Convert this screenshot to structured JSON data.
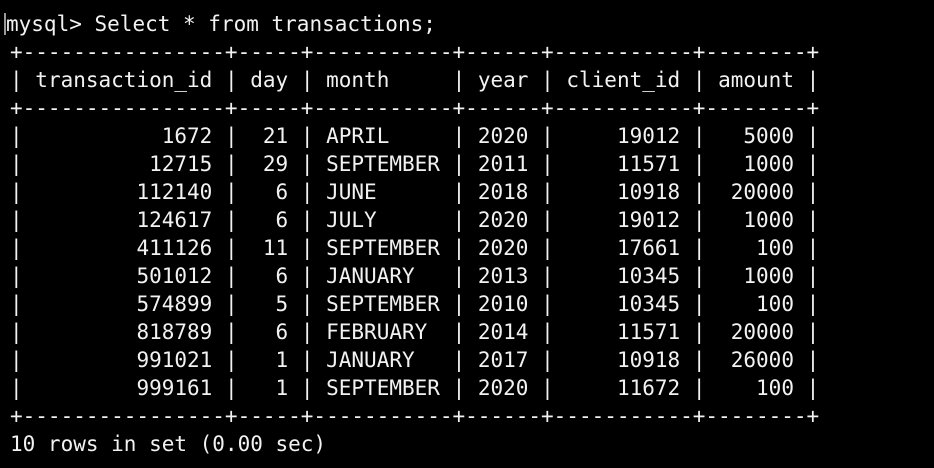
{
  "terminal": {
    "prompt": "mysql> ",
    "command": "Select * from transactions;",
    "footer": "10 rows in set (0.00 sec)"
  },
  "table": {
    "columns": [
      {
        "label": "transaction_id",
        "width": 14,
        "align": "right"
      },
      {
        "label": "day",
        "width": 3,
        "align": "right"
      },
      {
        "label": "month",
        "width": 9,
        "align": "left"
      },
      {
        "label": "year",
        "width": 4,
        "align": "right"
      },
      {
        "label": "client_id",
        "width": 9,
        "align": "right"
      },
      {
        "label": "amount",
        "width": 6,
        "align": "right"
      }
    ],
    "rows": [
      [
        "1672",
        "21",
        "APRIL",
        "2020",
        "19012",
        "5000"
      ],
      [
        "12715",
        "29",
        "SEPTEMBER",
        "2011",
        "11571",
        "1000"
      ],
      [
        "112140",
        "6",
        "JUNE",
        "2018",
        "10918",
        "20000"
      ],
      [
        "124617",
        "6",
        "JULY",
        "2020",
        "19012",
        "1000"
      ],
      [
        "411126",
        "11",
        "SEPTEMBER",
        "2020",
        "17661",
        "100"
      ],
      [
        "501012",
        "6",
        "JANUARY",
        "2013",
        "10345",
        "1000"
      ],
      [
        "574899",
        "5",
        "SEPTEMBER",
        "2010",
        "10345",
        "100"
      ],
      [
        "818789",
        "6",
        "FEBRUARY",
        "2014",
        "11571",
        "20000"
      ],
      [
        "991021",
        "1",
        "JANUARY",
        "2017",
        "10918",
        "26000"
      ],
      [
        "999161",
        "1",
        "SEPTEMBER",
        "2020",
        "11672",
        "100"
      ]
    ]
  }
}
